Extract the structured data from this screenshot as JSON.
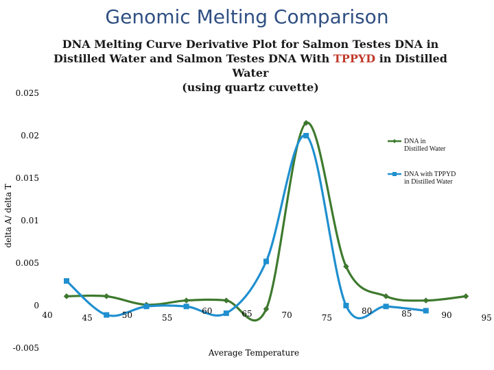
{
  "slide": {
    "title": "Genomic Melting Comparison"
  },
  "chart_data": {
    "type": "line",
    "title_parts": [
      "DNA Melting Curve Derivative Plot for Salmon Testes DNA in Distilled Water and Salmon Testes DNA With ",
      "TPPYD",
      " in Distilled Water",
      "(using quartz cuvette)"
    ],
    "xlabel": "Average Temperature",
    "ylabel": "delta A/ delta T",
    "x_ticks": [
      "40",
      "45",
      "50",
      "55",
      "60",
      "65",
      "70",
      "75",
      "80",
      "85",
      "90",
      "95"
    ],
    "y_ticks": [
      "0.025",
      "0.02",
      "0.015",
      "0.01",
      "0.005",
      "0",
      "-0.005"
    ],
    "xlim": [
      40,
      95
    ],
    "ylim": [
      -0.005,
      0.025
    ],
    "series": [
      {
        "name": "DNA in Distilled Water",
        "color": "#3e7a2e",
        "marker": "diamond",
        "x": [
          40,
          45,
          50,
          55,
          60,
          65,
          70,
          75,
          80,
          85,
          90
        ],
        "y": [
          0.0011,
          0.0011,
          0.0001,
          0.0006,
          0.0006,
          -0.0004,
          0.0215,
          0.0046,
          0.0011,
          0.0006,
          0.0011
        ]
      },
      {
        "name": "DNA with TPPYD in Distilled Water",
        "color": "#1f8fcf",
        "marker": "square",
        "x": [
          40,
          45,
          50,
          55,
          60,
          65,
          70,
          75,
          80,
          85,
          90
        ],
        "y": [
          0.0029,
          -0.0011,
          -0.0001,
          -0.0001,
          -0.0009,
          0.0052,
          0.02,
          0.0,
          -0.0001,
          -0.0006,
          null
        ]
      }
    ]
  }
}
